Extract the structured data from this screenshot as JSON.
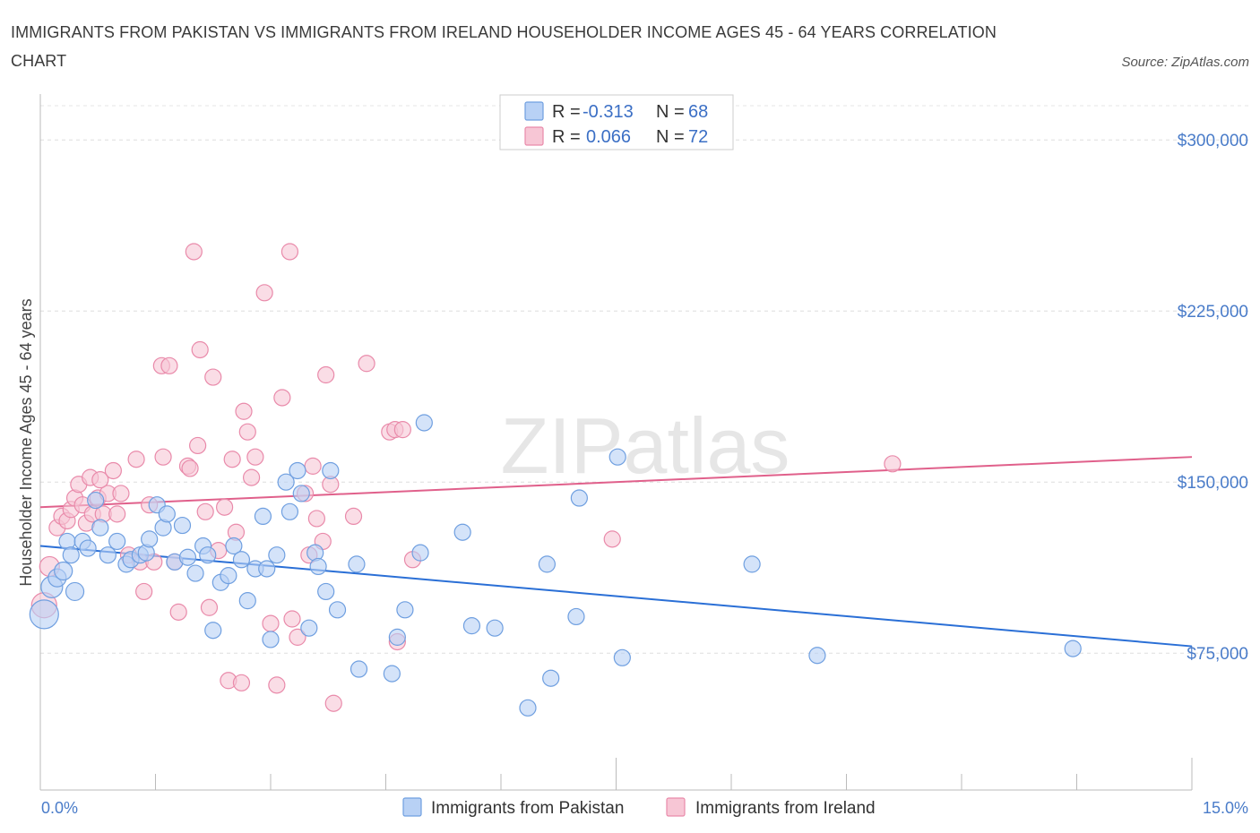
{
  "title": "IMMIGRANTS FROM PAKISTAN VS IMMIGRANTS FROM IRELAND HOUSEHOLDER INCOME AGES 45 - 64 YEARS CORRELATION CHART",
  "source": "Source: ZipAtlas.com",
  "watermark": "ZIPatlas",
  "legend": {
    "rows": [
      {
        "r_label": "R =",
        "r_value": "-0.313",
        "n_label": "N =",
        "n_value": "68",
        "color": "#7aa7e8"
      },
      {
        "r_label": "R =",
        "r_value": "0.066",
        "n_label": "N =",
        "n_value": "72",
        "color": "#f0a3bc"
      }
    ]
  },
  "bottom_legend": [
    "Immigrants from Pakistan",
    "Immigrants from Ireland"
  ],
  "chart_data": {
    "type": "scatter",
    "xlabel": "",
    "ylabel": "Householder Income Ages 45 - 64 years",
    "xlim": [
      0,
      15
    ],
    "ylim": [
      15000,
      315000
    ],
    "x_tick_labels": [
      "0.0%",
      "15.0%"
    ],
    "y_ticks": [
      75000,
      150000,
      225000,
      300000
    ],
    "y_tick_labels": [
      "$75,000",
      "$150,000",
      "$225,000",
      "$300,000"
    ],
    "grid": true,
    "legend_position": "top-center",
    "colors": {
      "pakistan_fill": "#b8d1f5",
      "pakistan_stroke": "#6f9fe0",
      "pakistan_line": "#2a6fd6",
      "ireland_fill": "#f7c6d5",
      "ireland_stroke": "#e98aaa",
      "ireland_line": "#e0608b"
    },
    "series": [
      {
        "name": "Immigrants from Pakistan",
        "trend": [
          [
            0,
            122000
          ],
          [
            15,
            78000
          ]
        ],
        "points": [
          [
            0.05,
            92000,
            16
          ],
          [
            0.15,
            104000,
            12
          ],
          [
            0.22,
            108000,
            10
          ],
          [
            0.3,
            111000,
            10
          ],
          [
            0.45,
            102000,
            10
          ],
          [
            0.35,
            124000,
            9
          ],
          [
            0.55,
            124000,
            9
          ],
          [
            0.62,
            121000,
            9
          ],
          [
            0.72,
            142000,
            9
          ],
          [
            0.78,
            130000,
            9
          ],
          [
            0.88,
            118000,
            9
          ],
          [
            1.0,
            124000,
            9
          ],
          [
            1.12,
            114000,
            9
          ],
          [
            1.18,
            116000,
            9
          ],
          [
            1.3,
            118000,
            9
          ],
          [
            1.38,
            119000,
            9
          ],
          [
            1.42,
            125000,
            9
          ],
          [
            1.52,
            140000,
            9
          ],
          [
            1.6,
            130000,
            9
          ],
          [
            1.65,
            136000,
            9
          ],
          [
            1.75,
            115000,
            9
          ],
          [
            1.85,
            131000,
            9
          ],
          [
            1.92,
            117000,
            9
          ],
          [
            2.02,
            110000,
            9
          ],
          [
            2.12,
            122000,
            9
          ],
          [
            2.18,
            118000,
            9
          ],
          [
            2.25,
            85000,
            9
          ],
          [
            2.35,
            106000,
            9
          ],
          [
            2.45,
            109000,
            9
          ],
          [
            2.52,
            122000,
            9
          ],
          [
            2.62,
            116000,
            9
          ],
          [
            2.7,
            98000,
            9
          ],
          [
            2.8,
            112000,
            9
          ],
          [
            2.9,
            135000,
            9
          ],
          [
            2.95,
            112000,
            9
          ],
          [
            3.0,
            81000,
            9
          ],
          [
            3.08,
            118000,
            9
          ],
          [
            3.2,
            150000,
            9
          ],
          [
            3.25,
            137000,
            9
          ],
          [
            3.35,
            155000,
            9
          ],
          [
            3.4,
            145000,
            9
          ],
          [
            3.5,
            86000,
            9
          ],
          [
            3.58,
            119000,
            9
          ],
          [
            3.62,
            113000,
            9
          ],
          [
            3.72,
            102000,
            9
          ],
          [
            3.78,
            155000,
            9
          ],
          [
            3.87,
            94000,
            9
          ],
          [
            4.12,
            114000,
            9
          ],
          [
            4.15,
            68000,
            9
          ],
          [
            4.58,
            66000,
            9
          ],
          [
            4.65,
            82000,
            9
          ],
          [
            4.75,
            94000,
            9
          ],
          [
            4.95,
            119000,
            9
          ],
          [
            5.0,
            176000,
            9
          ],
          [
            5.5,
            128000,
            9
          ],
          [
            5.62,
            87000,
            9
          ],
          [
            5.92,
            86000,
            9
          ],
          [
            6.35,
            51000,
            9
          ],
          [
            6.6,
            114000,
            9
          ],
          [
            6.65,
            64000,
            9
          ],
          [
            6.98,
            91000,
            9
          ],
          [
            7.02,
            143000,
            9
          ],
          [
            7.52,
            161000,
            9
          ],
          [
            7.58,
            73000,
            9
          ],
          [
            9.27,
            114000,
            9
          ],
          [
            10.12,
            74000,
            9
          ],
          [
            13.45,
            77000,
            9
          ],
          [
            0.4,
            118000,
            9
          ]
        ]
      },
      {
        "name": "Immigrants from Ireland",
        "trend": [
          [
            0,
            139000
          ],
          [
            15,
            161000
          ]
        ],
        "points": [
          [
            0.05,
            96000,
            14
          ],
          [
            0.12,
            113000,
            11
          ],
          [
            0.22,
            130000,
            9
          ],
          [
            0.28,
            135000,
            9
          ],
          [
            0.35,
            133000,
            9
          ],
          [
            0.4,
            138000,
            9
          ],
          [
            0.45,
            143000,
            9
          ],
          [
            0.5,
            149000,
            9
          ],
          [
            0.55,
            140000,
            9
          ],
          [
            0.6,
            132000,
            9
          ],
          [
            0.68,
            136000,
            9
          ],
          [
            0.75,
            143000,
            9
          ],
          [
            0.82,
            136000,
            9
          ],
          [
            0.88,
            145000,
            9
          ],
          [
            0.95,
            155000,
            9
          ],
          [
            1.0,
            136000,
            9
          ],
          [
            1.05,
            145000,
            9
          ],
          [
            1.15,
            118000,
            9
          ],
          [
            1.25,
            160000,
            9
          ],
          [
            1.3,
            115000,
            9
          ],
          [
            1.35,
            102000,
            9
          ],
          [
            1.42,
            140000,
            9
          ],
          [
            1.48,
            115000,
            9
          ],
          [
            1.58,
            201000,
            9
          ],
          [
            1.6,
            161000,
            9
          ],
          [
            1.68,
            201000,
            9
          ],
          [
            1.75,
            115000,
            9
          ],
          [
            1.8,
            93000,
            9
          ],
          [
            1.92,
            157000,
            9
          ],
          [
            1.95,
            156000,
            9
          ],
          [
            2.0,
            251000,
            9
          ],
          [
            2.05,
            166000,
            9
          ],
          [
            2.08,
            208000,
            9
          ],
          [
            2.15,
            137000,
            9
          ],
          [
            2.2,
            95000,
            9
          ],
          [
            2.25,
            196000,
            9
          ],
          [
            2.32,
            120000,
            9
          ],
          [
            2.4,
            139000,
            9
          ],
          [
            2.45,
            63000,
            9
          ],
          [
            2.5,
            160000,
            9
          ],
          [
            2.55,
            128000,
            9
          ],
          [
            2.62,
            62000,
            9
          ],
          [
            2.65,
            181000,
            9
          ],
          [
            2.7,
            172000,
            9
          ],
          [
            2.75,
            152000,
            9
          ],
          [
            2.8,
            161000,
            9
          ],
          [
            2.92,
            233000,
            9
          ],
          [
            3.0,
            88000,
            9
          ],
          [
            3.08,
            61000,
            9
          ],
          [
            3.15,
            187000,
            9
          ],
          [
            3.25,
            251000,
            9
          ],
          [
            3.28,
            90000,
            9
          ],
          [
            3.35,
            82000,
            9
          ],
          [
            3.45,
            145000,
            9
          ],
          [
            3.5,
            118000,
            9
          ],
          [
            3.55,
            157000,
            9
          ],
          [
            3.6,
            134000,
            9
          ],
          [
            3.68,
            124000,
            9
          ],
          [
            3.72,
            197000,
            9
          ],
          [
            3.78,
            149000,
            9
          ],
          [
            3.82,
            53000,
            9
          ],
          [
            4.08,
            135000,
            9
          ],
          [
            4.25,
            202000,
            9
          ],
          [
            4.55,
            172000,
            9
          ],
          [
            4.62,
            173000,
            9
          ],
          [
            4.65,
            80000,
            9
          ],
          [
            4.72,
            173000,
            9
          ],
          [
            4.85,
            116000,
            9
          ],
          [
            7.45,
            125000,
            9
          ],
          [
            11.1,
            158000,
            9
          ],
          [
            0.65,
            152000,
            9
          ],
          [
            0.78,
            151000,
            9
          ]
        ]
      }
    ]
  }
}
